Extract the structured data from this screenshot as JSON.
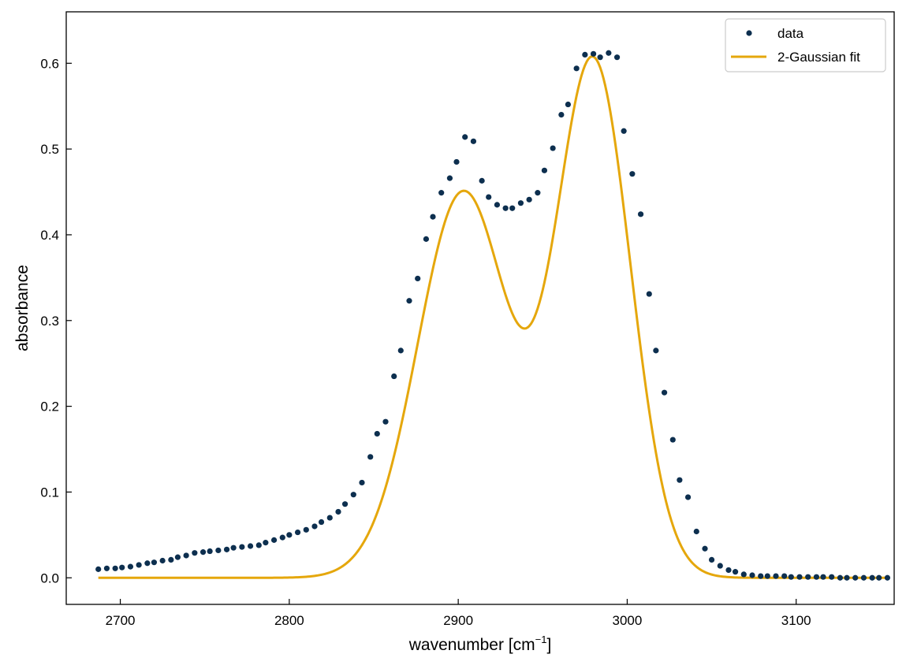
{
  "chart_data": {
    "type": "scatter",
    "xlabel": "wavenumber [cm",
    "xlabel_sup": "−1",
    "xlabel_end": "]",
    "ylabel": "absorbance",
    "xlim": [
      2668,
      3158
    ],
    "ylim": [
      -0.031,
      0.66
    ],
    "xticks": [
      2700,
      2800,
      2900,
      3000,
      3100
    ],
    "xtick_labels": [
      "2700",
      "2800",
      "2900",
      "3000",
      "3100"
    ],
    "yticks": [
      0.0,
      0.1,
      0.2,
      0.3,
      0.4,
      0.5,
      0.6
    ],
    "ytick_labels": [
      "0.0",
      "0.1",
      "0.2",
      "0.3",
      "0.4",
      "0.5",
      "0.6"
    ],
    "grid": false,
    "legend_position": "top-right",
    "series": [
      {
        "name": "data",
        "kind": "scatter",
        "color": "#0d2f4f",
        "x": [
          2687,
          2692,
          2697,
          2701,
          2706,
          2711,
          2716,
          2720,
          2725,
          2730,
          2734,
          2739,
          2744,
          2749,
          2753,
          2758,
          2763,
          2767,
          2772,
          2777,
          2782,
          2786,
          2791,
          2796,
          2800,
          2805,
          2810,
          2815,
          2819,
          2824,
          2829,
          2833,
          2838,
          2843,
          2848,
          2852,
          2857,
          2862,
          2866,
          2871,
          2876,
          2881,
          2885,
          2890,
          2895,
          2899,
          2904,
          2909,
          2914,
          2918,
          2923,
          2928,
          2932,
          2937,
          2942,
          2947,
          2951,
          2956,
          2961,
          2965,
          2970,
          2975,
          2980,
          2984,
          2989,
          2994,
          2998,
          3003,
          3008,
          3013,
          3017,
          3022,
          3027,
          3031,
          3036,
          3041,
          3046,
          3050,
          3055,
          3060,
          3064,
          3069,
          3074,
          3079,
          3083,
          3088,
          3093,
          3097,
          3102,
          3107,
          3112,
          3116,
          3121,
          3126,
          3130,
          3135,
          3140,
          3145,
          3149,
          3154
        ],
        "y": [
          0.01,
          0.011,
          0.011,
          0.012,
          0.013,
          0.015,
          0.017,
          0.018,
          0.02,
          0.021,
          0.024,
          0.026,
          0.029,
          0.03,
          0.031,
          0.032,
          0.033,
          0.035,
          0.036,
          0.037,
          0.038,
          0.041,
          0.044,
          0.047,
          0.05,
          0.053,
          0.056,
          0.06,
          0.065,
          0.07,
          0.077,
          0.086,
          0.097,
          0.111,
          0.141,
          0.168,
          0.182,
          0.235,
          0.265,
          0.323,
          0.349,
          0.395,
          0.421,
          0.449,
          0.466,
          0.485,
          0.514,
          0.509,
          0.463,
          0.444,
          0.435,
          0.431,
          0.431,
          0.437,
          0.441,
          0.449,
          0.475,
          0.501,
          0.54,
          0.552,
          0.594,
          0.61,
          0.611,
          0.607,
          0.612,
          0.607,
          0.521,
          0.471,
          0.424,
          0.331,
          0.265,
          0.216,
          0.161,
          0.114,
          0.094,
          0.054,
          0.034,
          0.021,
          0.014,
          0.009,
          0.007,
          0.004,
          0.003,
          0.002,
          0.002,
          0.002,
          0.002,
          0.001,
          0.001,
          0.001,
          0.001,
          0.001,
          0.001,
          0.0,
          0.0,
          0.0,
          0.0,
          0.0,
          0.0,
          0.0
        ]
      },
      {
        "name": "2-Gaussian fit",
        "kind": "line",
        "color": "#e5a70c",
        "gaussians": [
          {
            "amplitude": 0.45,
            "center": 2903,
            "sigma": 27
          },
          {
            "amplitude": 0.6,
            "center": 2980,
            "sigma": 22
          }
        ],
        "x_start": 2687,
        "x_end": 3154
      }
    ]
  }
}
